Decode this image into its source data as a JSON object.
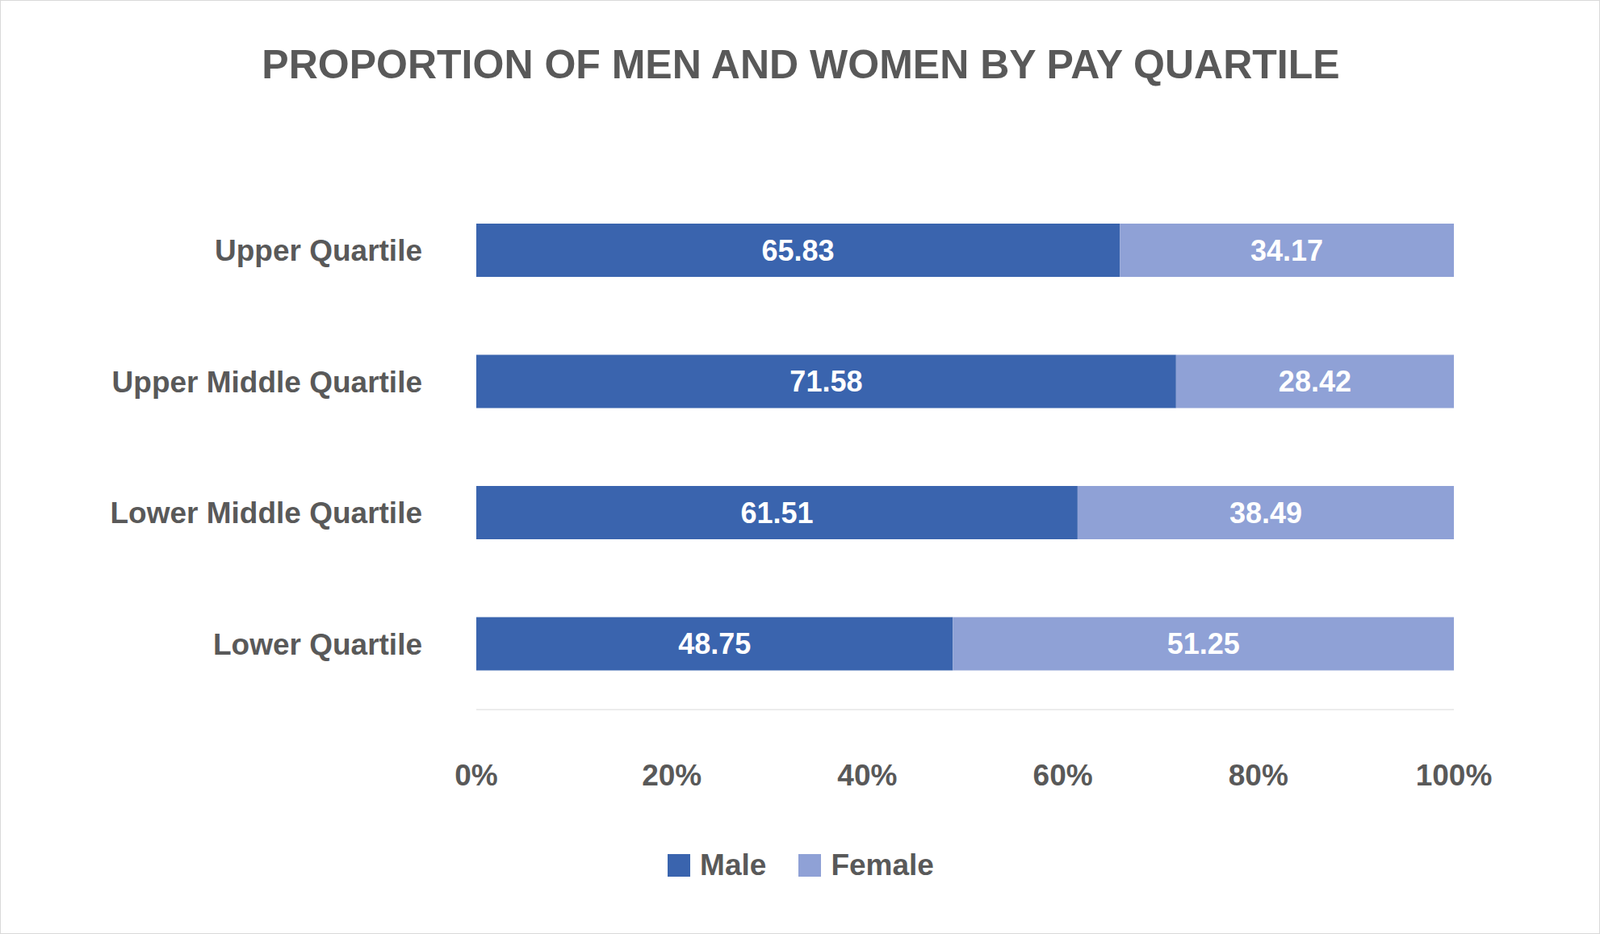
{
  "chart_data": {
    "type": "bar",
    "title": "PROPORTION OF MEN AND WOMEN BY PAY QUARTILE",
    "orientation": "horizontal",
    "stacked": true,
    "data_labels": true,
    "legend": "bottom",
    "categories": [
      "Upper Quartile",
      "Upper Middle Quartile",
      "Lower Middle Quartile",
      "Lower Quartile"
    ],
    "series": [
      {
        "name": "Male",
        "color": "#3a64ae",
        "values": [
          65.83,
          71.58,
          61.51,
          48.75
        ]
      },
      {
        "name": "Female",
        "color": "#8fa1d6",
        "values": [
          34.17,
          28.42,
          38.49,
          51.25
        ]
      }
    ],
    "xlim": [
      0,
      100
    ],
    "xticks": [
      {
        "value": 0,
        "label": "0%"
      },
      {
        "value": 20,
        "label": "20%"
      },
      {
        "value": 40,
        "label": "40%"
      },
      {
        "value": 60,
        "label": "60%"
      },
      {
        "value": 80,
        "label": "80%"
      },
      {
        "value": 100,
        "label": "100%"
      }
    ]
  }
}
